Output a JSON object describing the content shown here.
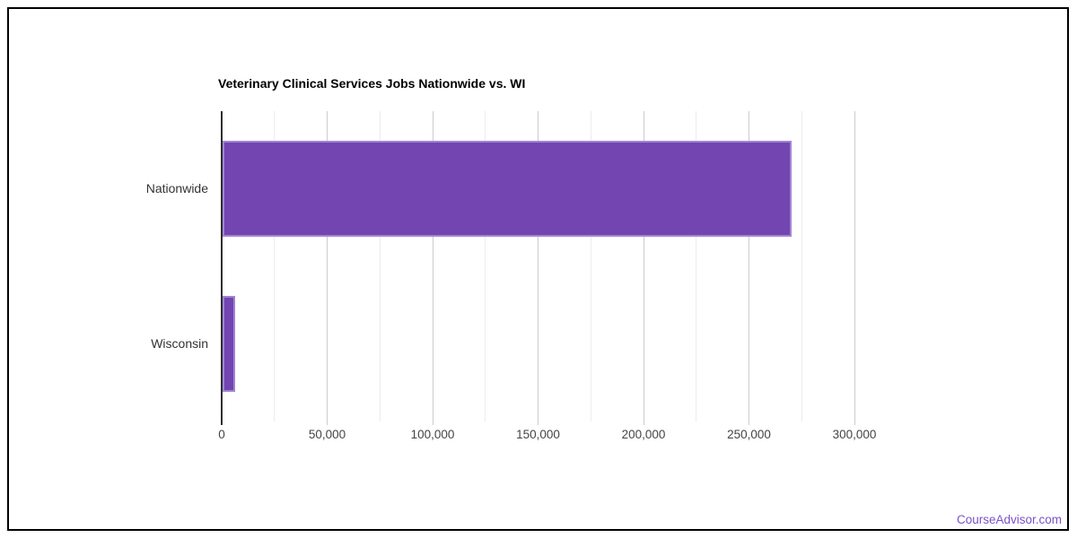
{
  "chart_data": {
    "type": "bar",
    "orientation": "horizontal",
    "title": "Veterinary Clinical Services Jobs Nationwide vs. WI",
    "categories": [
      "Nationwide",
      "Wisconsin"
    ],
    "values": [
      270000,
      6500
    ],
    "xlim": [
      0,
      300000
    ],
    "xticks": [
      0,
      50000,
      100000,
      150000,
      200000,
      250000,
      300000
    ],
    "xtick_labels": [
      "0",
      "50,000",
      "100,000",
      "150,000",
      "200,000",
      "250,000",
      "300,000"
    ],
    "minor_gridline_interval": 25000,
    "grid": true,
    "legend": "none",
    "bar_color": "#7245b0",
    "bar_edge_color": "#a084d2",
    "axis_line_color": "#2e2e2e",
    "major_gridline_color": "#cccccc",
    "minor_gridline_color": "#ececec"
  },
  "footer": {
    "brand_link": "CourseAdvisor.com",
    "brand_color": "#7a52c9"
  }
}
